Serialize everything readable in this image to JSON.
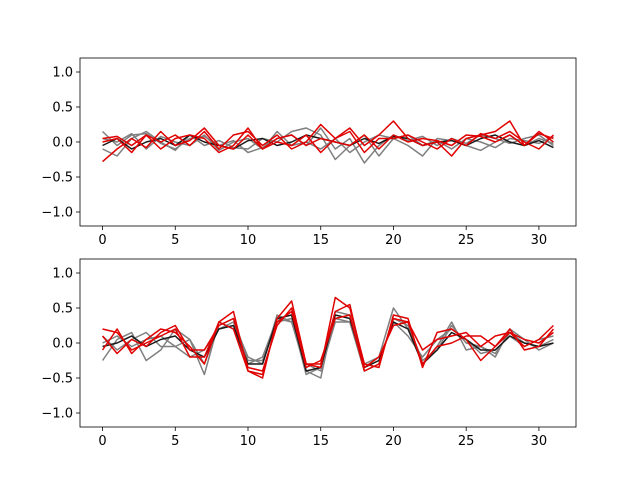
{
  "chart_data": [
    {
      "type": "line",
      "title": "",
      "xlabel": "",
      "ylabel": "",
      "xlim": [
        -1.55,
        32.55
      ],
      "ylim": [
        -1.2,
        1.2
      ],
      "xticks": [
        0,
        5,
        10,
        15,
        20,
        25,
        30
      ],
      "yticks": [
        -1.0,
        -0.5,
        0.0,
        0.5,
        1.0
      ],
      "ytick_labels": [
        "−1.0",
        "−0.5",
        "0.0",
        "0.5",
        "1.0"
      ],
      "grid": false,
      "legend": "none",
      "colors": {
        "gray": "#7f7f7f",
        "black": "#1a1a1a",
        "red": "#e00000"
      },
      "series": [
        {
          "color": "gray",
          "values": [
            0.15,
            -0.05,
            0.1,
            0.12,
            -0.02,
            -0.1,
            0.05,
            0.08,
            -0.05,
            0.02,
            -0.15,
            -0.08,
            0.05,
            0.1,
            -0.05,
            0.2,
            -0.1,
            0.05,
            -0.3,
            -0.05,
            0.1,
            0.02,
            0.08,
            -0.05,
            0.05,
            -0.02,
            0.1,
            0.05,
            -0.02,
            0.05,
            0.1,
            -0.05
          ]
        },
        {
          "color": "gray",
          "values": [
            -0.1,
            -0.2,
            0.05,
            0.15,
            0.0,
            -0.12,
            0.1,
            -0.05,
            0.02,
            -0.08,
            -0.1,
            0.05,
            0.0,
            0.15,
            0.2,
            0.1,
            -0.25,
            -0.05,
            0.1,
            -0.2,
            0.05,
            0.1,
            -0.05,
            0.02,
            -0.1,
            0.05,
            0.0,
            -0.08,
            0.05,
            0.02,
            -0.02,
            0.08
          ]
        },
        {
          "color": "gray",
          "values": [
            0.05,
            0.0,
            0.12,
            -0.1,
            0.08,
            0.0,
            -0.05,
            0.1,
            -0.12,
            0.0,
            0.05,
            -0.1,
            0.15,
            -0.05,
            0.0,
            -0.1,
            0.05,
            -0.15,
            0.0,
            0.1,
            0.05,
            -0.05,
            -0.2,
            0.05,
            0.02,
            -0.05,
            -0.12,
            0.0,
            0.1,
            -0.05,
            0.05,
            -0.02
          ]
        },
        {
          "color": "black",
          "values": [
            -0.05,
            0.05,
            -0.1,
            0.0,
            0.05,
            -0.05,
            0.1,
            0.0,
            -0.05,
            -0.1,
            0.02,
            0.05,
            -0.05,
            0.0,
            0.1,
            0.05,
            0.0,
            -0.05,
            0.05,
            -0.02,
            0.08,
            0.05,
            -0.05,
            0.0,
            0.02,
            -0.05,
            0.05,
            0.1,
            0.0,
            -0.05,
            0.02,
            -0.08
          ]
        },
        {
          "color": "red",
          "values": [
            -0.28,
            -0.1,
            0.05,
            -0.08,
            0.15,
            -0.05,
            0.02,
            0.2,
            -0.05,
            -0.1,
            0.1,
            -0.1,
            0.0,
            -0.05,
            0.1,
            -0.15,
            0.05,
            0.2,
            -0.05,
            0.1,
            0.3,
            0.05,
            -0.05,
            0.0,
            -0.2,
            0.05,
            0.1,
            0.15,
            0.3,
            -0.05,
            0.12,
            0.05
          ]
        },
        {
          "color": "red",
          "values": [
            0.05,
            0.08,
            -0.05,
            0.1,
            0.0,
            0.1,
            -0.05,
            0.15,
            -0.1,
            0.1,
            0.15,
            -0.05,
            0.1,
            -0.1,
            0.0,
            0.25,
            0.05,
            0.15,
            -0.15,
            0.05,
            0.05,
            0.1,
            0.0,
            -0.1,
            0.05,
            -0.05,
            0.12,
            0.05,
            0.15,
            0.0,
            -0.1,
            0.1
          ]
        },
        {
          "color": "red",
          "values": [
            0.0,
            0.05,
            -0.15,
            0.1,
            -0.1,
            0.05,
            0.1,
            0.05,
            -0.15,
            -0.05,
            0.2,
            -0.1,
            0.05,
            0.1,
            -0.05,
            0.05,
            0.0,
            -0.05,
            0.1,
            -0.1,
            0.1,
            0.0,
            0.05,
            0.02,
            -0.05,
            0.1,
            0.08,
            0.0,
            0.1,
            -0.05,
            0.15,
            0.0
          ]
        }
      ]
    },
    {
      "type": "line",
      "title": "",
      "xlabel": "",
      "ylabel": "",
      "xlim": [
        -1.55,
        32.55
      ],
      "ylim": [
        -1.2,
        1.2
      ],
      "xticks": [
        0,
        5,
        10,
        15,
        20,
        25,
        30
      ],
      "yticks": [
        -1.0,
        -0.5,
        0.0,
        0.5,
        1.0
      ],
      "ytick_labels": [
        "−1.0",
        "−0.5",
        "0.0",
        "0.5",
        "1.0"
      ],
      "grid": false,
      "legend": "none",
      "colors": {
        "gray": "#7f7f7f",
        "black": "#1a1a1a",
        "red": "#e00000"
      },
      "series": [
        {
          "color": "gray",
          "values": [
            -0.25,
            0.05,
            0.15,
            -0.25,
            -0.1,
            0.2,
            0.05,
            -0.45,
            0.3,
            0.2,
            -0.3,
            -0.2,
            0.35,
            0.3,
            -0.4,
            -0.5,
            0.45,
            0.4,
            -0.3,
            -0.2,
            0.5,
            0.2,
            -0.3,
            -0.05,
            0.3,
            -0.1,
            -0.05,
            -0.2,
            0.2,
            0.05,
            -0.1,
            0.0
          ]
        },
        {
          "color": "gray",
          "values": [
            0.1,
            -0.1,
            0.05,
            0.15,
            -0.05,
            -0.05,
            -0.2,
            -0.1,
            0.2,
            0.3,
            -0.2,
            -0.3,
            0.4,
            0.3,
            -0.3,
            -0.4,
            0.3,
            0.3,
            -0.35,
            -0.25,
            0.3,
            0.1,
            -0.2,
            0.05,
            0.2,
            0.05,
            -0.15,
            -0.1,
            0.1,
            -0.05,
            0.05,
            0.1
          ]
        },
        {
          "color": "gray",
          "values": [
            0.0,
            0.1,
            -0.05,
            0.05,
            0.1,
            -0.05,
            0.05,
            -0.3,
            0.25,
            0.35,
            -0.25,
            -0.25,
            0.3,
            0.35,
            -0.45,
            -0.35,
            0.35,
            0.3,
            -0.4,
            -0.3,
            0.35,
            0.25,
            -0.25,
            -0.1,
            0.25,
            0.0,
            -0.05,
            -0.15,
            0.15,
            0.0,
            -0.05,
            0.05
          ]
        },
        {
          "color": "black",
          "values": [
            -0.05,
            0.0,
            0.1,
            -0.05,
            0.05,
            0.1,
            -0.1,
            -0.2,
            0.2,
            0.25,
            -0.3,
            -0.3,
            0.35,
            0.4,
            -0.4,
            -0.35,
            0.4,
            0.35,
            -0.35,
            -0.25,
            0.3,
            0.2,
            -0.3,
            -0.1,
            0.15,
            0.05,
            -0.1,
            -0.1,
            0.1,
            0.0,
            -0.05,
            0.0
          ]
        },
        {
          "color": "red",
          "values": [
            0.2,
            0.15,
            -0.1,
            0.0,
            0.1,
            0.2,
            -0.2,
            -0.2,
            0.3,
            0.45,
            -0.4,
            -0.5,
            0.35,
            0.6,
            -0.3,
            -0.35,
            0.65,
            0.5,
            -0.3,
            -0.35,
            0.4,
            0.35,
            -0.35,
            0.15,
            0.2,
            0.05,
            -0.25,
            -0.05,
            0.15,
            -0.05,
            0.05,
            0.25
          ]
        },
        {
          "color": "red",
          "values": [
            -0.1,
            0.2,
            -0.15,
            0.05,
            0.2,
            0.15,
            -0.05,
            -0.3,
            0.3,
            0.2,
            -0.4,
            -0.45,
            0.3,
            0.45,
            -0.35,
            -0.25,
            0.35,
            0.4,
            -0.4,
            -0.3,
            0.35,
            0.3,
            -0.3,
            -0.05,
            0.0,
            0.1,
            0.1,
            -0.05,
            0.2,
            -0.1,
            -0.05,
            0.2
          ]
        },
        {
          "color": "red",
          "values": [
            0.1,
            -0.15,
            0.05,
            -0.05,
            0.15,
            0.25,
            -0.1,
            -0.1,
            0.25,
            0.35,
            -0.35,
            -0.4,
            0.25,
            0.5,
            -0.3,
            -0.3,
            0.45,
            0.55,
            -0.35,
            -0.2,
            0.25,
            0.3,
            -0.1,
            0.05,
            0.1,
            0.15,
            -0.05,
            0.1,
            0.15,
            0.05,
            0.0,
            0.15
          ]
        }
      ]
    }
  ]
}
